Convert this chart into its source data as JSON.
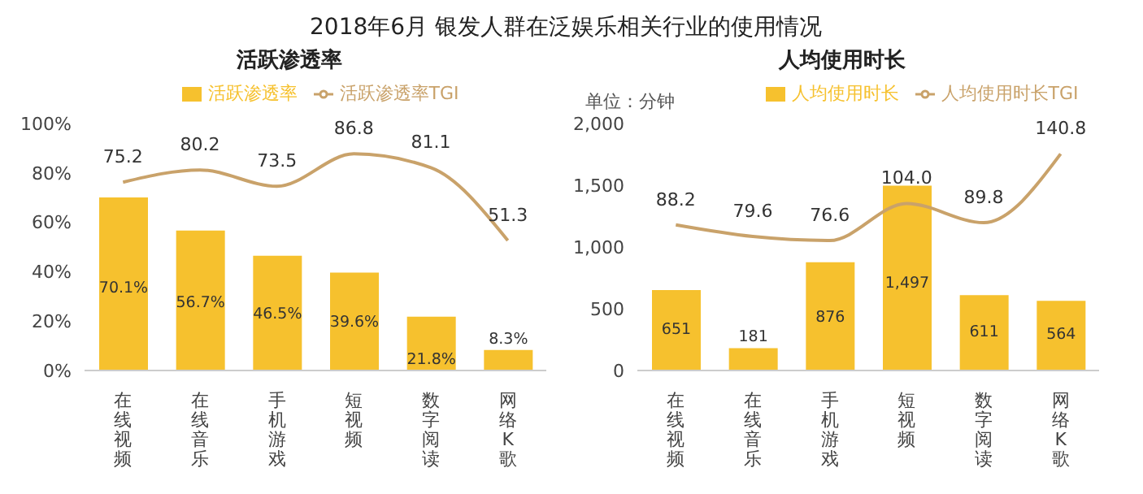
{
  "chart_data": [
    {
      "type": "bar",
      "title": "2018年6月 银发人群在泛娱乐相关行业的使用情况",
      "subtitle": "活跃渗透率",
      "categories": [
        "在线视频",
        "在线音乐",
        "手机游戏",
        "短视频",
        "数字阅读",
        "网络K歌"
      ],
      "series": [
        {
          "name": "活跃渗透率",
          "color": "#f6c12e",
          "values": [
            70.1,
            56.7,
            46.5,
            39.6,
            21.8,
            8.3
          ],
          "value_labels": [
            "70.1%",
            "56.7%",
            "46.5%",
            "39.6%",
            "21.8%",
            "8.3%"
          ]
        },
        {
          "name": "活跃渗透率TGI",
          "type": "line",
          "axis": "y2",
          "color": "#c9a26a",
          "values": [
            75.2,
            80.2,
            73.5,
            86.8,
            81.1,
            51.3
          ],
          "value_labels": [
            "75.2",
            "80.2",
            "73.5",
            "86.8",
            "81.1",
            "51.3"
          ]
        }
      ],
      "ylim": [
        0,
        100
      ],
      "yticks": [
        {
          "value": 0,
          "label": "0%"
        },
        {
          "value": 20,
          "label": "20%"
        },
        {
          "value": 40,
          "label": "40%"
        },
        {
          "value": 60,
          "label": "60%"
        },
        {
          "value": 80,
          "label": "80%"
        },
        {
          "value": 100,
          "label": "100%"
        }
      ],
      "legend": "top",
      "grid": false,
      "marker": "none"
    },
    {
      "type": "bar",
      "subtitle": "人均使用时长",
      "ylabel": "单位：分钟",
      "categories": [
        "在线视频",
        "在线音乐",
        "手机游戏",
        "短视频",
        "数字阅读",
        "网络K歌"
      ],
      "series": [
        {
          "name": "人均使用时长",
          "color": "#f6c12e",
          "values": [
            651,
            181,
            876,
            1497,
            611,
            564
          ],
          "value_labels": [
            "651",
            "181",
            "876",
            "1,497",
            "611",
            "564"
          ]
        },
        {
          "name": "人均使用时长TGI",
          "type": "line",
          "axis": "y2",
          "color": "#c9a26a",
          "values": [
            88.2,
            79.6,
            76.6,
            104.0,
            89.8,
            140.8
          ],
          "value_labels": [
            "88.2",
            "79.6",
            "76.6",
            "104.0",
            "89.8",
            "140.8"
          ]
        }
      ],
      "ylim": [
        0,
        2000
      ],
      "yticks": [
        {
          "value": 0,
          "label": "0"
        },
        {
          "value": 500,
          "label": "500"
        },
        {
          "value": 1000,
          "label": "1,000"
        },
        {
          "value": 1500,
          "label": "1,500"
        },
        {
          "value": 2000,
          "label": "2,000"
        }
      ],
      "legend": "top",
      "grid": false,
      "marker": "none"
    }
  ]
}
